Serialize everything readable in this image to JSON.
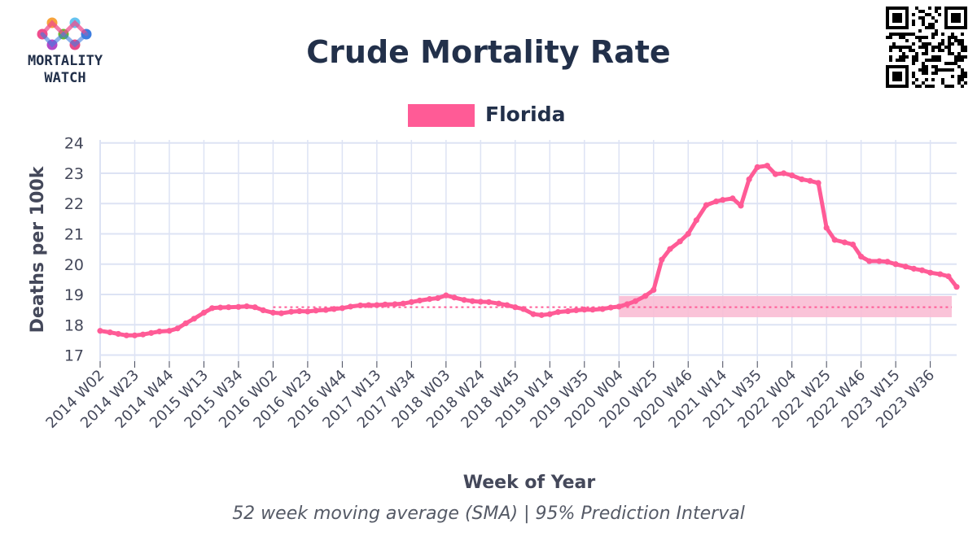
{
  "logo": {
    "line1": "MORTALITY",
    "line2": "WATCH"
  },
  "qr_code": {
    "icon": "qr-code-icon"
  },
  "colors": {
    "series": "#ff5b96",
    "baseline": "#ff5b96",
    "pi_band": "#f9bcd4",
    "grid": "#dde3f4",
    "title": "#22304a"
  },
  "chart_data": {
    "type": "line",
    "title": "Crude Mortality Rate",
    "subtitle": "52 week moving average (SMA) | 95% Prediction Interval",
    "xlabel": "Week of Year",
    "ylabel": "Deaths per 100k",
    "ylim": [
      16.8,
      24.1
    ],
    "yticks": [
      17,
      18,
      19,
      20,
      21,
      22,
      23,
      24
    ],
    "x_start": "2014 W02",
    "x_end": "2023 W52",
    "grid": true,
    "legend_placement": "top-center",
    "x_tick_labels": [
      "2014 W02",
      "2014 W23",
      "2014 W44",
      "2015 W13",
      "2015 W34",
      "2016 W02",
      "2016 W23",
      "2016 W44",
      "2017 W13",
      "2017 W34",
      "2018 W03",
      "2018 W24",
      "2018 W45",
      "2019 W14",
      "2019 W35",
      "2020 W04",
      "2020 W25",
      "2020 W46",
      "2021 W14",
      "2021 W35",
      "2022 W04",
      "2022 W25",
      "2022 W46",
      "2023 W15",
      "2023 W36"
    ],
    "series": [
      {
        "name": "Florida",
        "x": [
          "2014 W02",
          "2014 W08",
          "2014 W13",
          "2014 W18",
          "2014 W23",
          "2014 W28",
          "2014 W33",
          "2014 W38",
          "2014 W44",
          "2014 W49",
          "2015 W02",
          "2015 W07",
          "2015 W13",
          "2015 W18",
          "2015 W23",
          "2015 W28",
          "2015 W34",
          "2015 W39",
          "2015 W44",
          "2015 W49",
          "2016 W02",
          "2016 W07",
          "2016 W13",
          "2016 W18",
          "2016 W23",
          "2016 W28",
          "2016 W34",
          "2016 W39",
          "2016 W44",
          "2016 W49",
          "2017 W03",
          "2017 W08",
          "2017 W13",
          "2017 W18",
          "2017 W24",
          "2017 W29",
          "2017 W34",
          "2017 W39",
          "2017 W45",
          "2017 W50",
          "2018 W03",
          "2018 W08",
          "2018 W14",
          "2018 W19",
          "2018 W24",
          "2018 W29",
          "2018 W35",
          "2018 W40",
          "2018 W45",
          "2018 W50",
          "2019 W04",
          "2019 W09",
          "2019 W14",
          "2019 W19",
          "2019 W25",
          "2019 W30",
          "2019 W35",
          "2019 W40",
          "2019 W46",
          "2019 W51",
          "2020 W04",
          "2020 W09",
          "2020 W14",
          "2020 W20",
          "2020 W25",
          "2020 W30",
          "2020 W35",
          "2020 W41",
          "2020 W46",
          "2020 W51",
          "2021 W04",
          "2021 W10",
          "2021 W14",
          "2021 W20",
          "2021 W25",
          "2021 W30",
          "2021 W35",
          "2021 W41",
          "2021 W46",
          "2021 W51",
          "2022 W04",
          "2022 W10",
          "2022 W15",
          "2022 W20",
          "2022 W25",
          "2022 W30",
          "2022 W36",
          "2022 W41",
          "2022 W46",
          "2022 W51",
          "2023 W05",
          "2023 W10",
          "2023 W15",
          "2023 W21",
          "2023 W26",
          "2023 W31",
          "2023 W36",
          "2023 W42",
          "2023 W47",
          "2023 W52"
        ],
        "values": [
          17.8,
          17.75,
          17.7,
          17.65,
          17.65,
          17.68,
          17.73,
          17.78,
          17.8,
          17.88,
          18.05,
          18.2,
          18.4,
          18.55,
          18.57,
          18.58,
          18.59,
          18.61,
          18.58,
          18.48,
          18.4,
          18.38,
          18.43,
          18.45,
          18.44,
          18.47,
          18.49,
          18.52,
          18.55,
          18.6,
          18.64,
          18.65,
          18.65,
          18.67,
          18.68,
          18.7,
          18.75,
          18.8,
          18.85,
          18.88,
          18.97,
          18.9,
          18.82,
          18.78,
          18.76,
          18.75,
          18.7,
          18.65,
          18.58,
          18.52,
          18.35,
          18.32,
          18.35,
          18.42,
          18.45,
          18.48,
          18.5,
          18.5,
          18.52,
          18.57,
          18.6,
          18.68,
          18.78,
          18.95,
          19.15,
          20.15,
          20.5,
          20.75,
          21.0,
          21.45,
          21.95,
          22.07,
          22.12,
          22.17,
          21.93,
          22.8,
          23.2,
          23.25,
          22.97,
          23.0,
          22.93,
          22.8,
          22.75,
          22.68,
          21.2,
          20.8,
          20.72,
          20.65,
          20.25,
          20.1,
          20.1,
          20.08,
          20.0,
          19.92,
          19.85,
          19.8,
          19.72,
          19.67,
          19.6,
          19.25
        ]
      }
    ],
    "baseline_value": 18.58,
    "prediction_interval": {
      "x_start": "2020 W04",
      "x_end": "2023 W52",
      "lower": 18.25,
      "upper": 18.95
    }
  }
}
